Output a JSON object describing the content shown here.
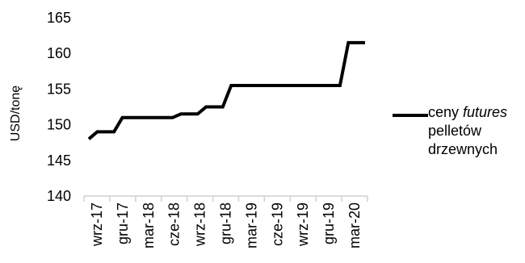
{
  "chart_data": {
    "type": "line",
    "title": "",
    "xlabel": "",
    "ylabel": "USD/tonę",
    "ylim": [
      140,
      165
    ],
    "yticks": [
      "140",
      "145",
      "150",
      "155",
      "160",
      "165"
    ],
    "xtick_labels": [
      "wrz-17",
      "gru-17",
      "mar-18",
      "cze-18",
      "wrz-18",
      "gru-18",
      "mar-19",
      "cze-19",
      "wrz-19",
      "gru-19",
      "mar-20"
    ],
    "grid": false,
    "legend_position": "right",
    "series": [
      {
        "name": "ceny futures pelletów drzewnych",
        "color": "#000000",
        "values": [
          148.0,
          149.0,
          149.0,
          149.0,
          151.0,
          151.0,
          151.0,
          151.0,
          151.0,
          151.0,
          151.0,
          151.5,
          151.5,
          151.5,
          152.5,
          152.5,
          152.5,
          155.5,
          155.5,
          155.5,
          155.5,
          155.5,
          155.5,
          155.5,
          155.5,
          155.5,
          155.5,
          155.5,
          155.5,
          155.5,
          155.5,
          161.5,
          161.5,
          161.5
        ]
      }
    ]
  },
  "legend": {
    "line1_plain": "ceny ",
    "line1_italic": "futures",
    "line2": "pelletów",
    "line3": "drzewnych"
  }
}
